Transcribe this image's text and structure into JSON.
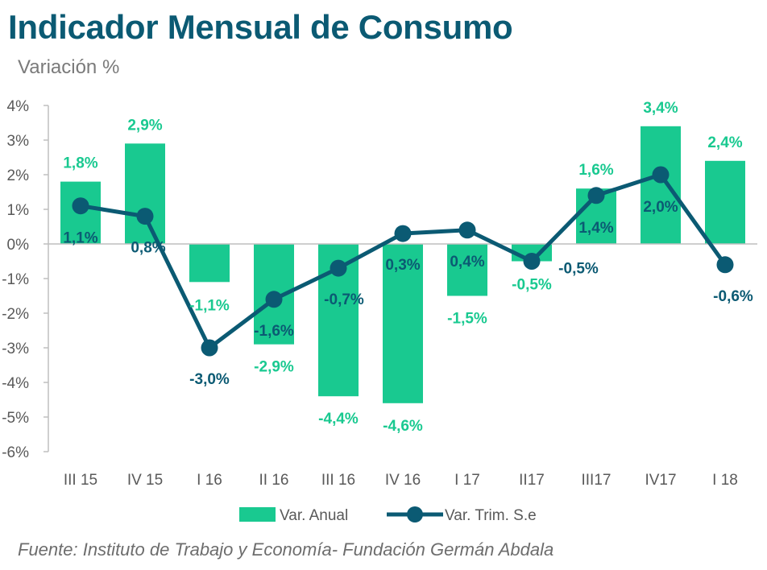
{
  "chart_data": {
    "type": "bar",
    "title": "Indicador Mensual de Consumo",
    "subtitle": "Variación %",
    "categories": [
      "III 15",
      "IV 15",
      "I 16",
      "II 16",
      "III 16",
      "IV 16",
      "I 17",
      "II17",
      "III17",
      "IV17",
      "I 18"
    ],
    "series": [
      {
        "name": "Var. Anual",
        "kind": "bar",
        "color": "#19c990",
        "values": [
          1.8,
          2.9,
          -1.1,
          -2.9,
          -4.4,
          -4.6,
          -1.5,
          -0.5,
          1.6,
          3.4,
          2.4
        ],
        "labels": [
          "1,8%",
          "2,9%",
          "-1,1%",
          "-2,9%",
          "-4,4%",
          "-4,6%",
          "-1,5%",
          "-0,5%",
          "1,6%",
          "3,4%",
          "2,4%"
        ]
      },
      {
        "name": "Var. Trim. S.e",
        "kind": "line",
        "color": "#0b5a73",
        "values": [
          1.1,
          0.8,
          -3.0,
          -1.6,
          -0.7,
          0.3,
          0.4,
          -0.5,
          1.4,
          2.0,
          -0.6
        ],
        "labels": [
          "1,1%",
          "0,8%",
          "-3,0%",
          "-1,6%",
          "-0,7%",
          "0,3%",
          "0,4%",
          "-0,5%",
          "1,4%",
          "2,0%",
          "-0,6%"
        ]
      }
    ],
    "ylim": [
      -6,
      4
    ],
    "yticks": [
      4,
      3,
      2,
      1,
      0,
      -1,
      -2,
      -3,
      -4,
      -5,
      -6
    ],
    "ytick_labels": [
      "4%",
      "3%",
      "2%",
      "1%",
      "0%",
      "-1%",
      "-2%",
      "-3%",
      "-4%",
      "-5%",
      "-6%"
    ],
    "xlabel": "",
    "ylabel": "",
    "grid": false,
    "legend": "bottom"
  },
  "source": "Fuente: Instituto de Trabajo y Economía- Fundación Germán Abdala"
}
